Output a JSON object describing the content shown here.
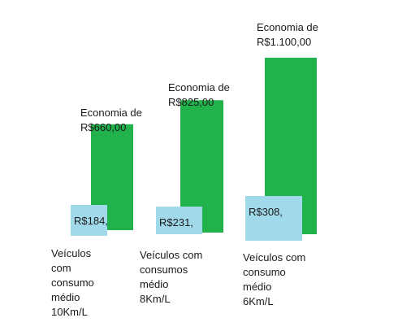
{
  "chart_data": {
    "type": "bar",
    "colors": {
      "savings": "#22b24c",
      "cost": "#9fd9ea"
    },
    "groups": [
      {
        "savings_value": 660,
        "savings_label": [
          "Economia de",
          "R$660,00"
        ],
        "cost_value": 184,
        "cost_label": "R$184,",
        "category_label": [
          "Veículos",
          "com",
          "consumo",
          "médio",
          "10Km/L"
        ]
      },
      {
        "savings_value": 825,
        "savings_label": [
          "Economia de",
          "R$825,00"
        ],
        "cost_value": 231,
        "cost_label": "R$231,",
        "category_label": [
          "Veículos com",
          "consumos",
          "médio",
          "8Km/L"
        ]
      },
      {
        "savings_value": 1100,
        "savings_label": [
          "Economia de",
          "R$1.100,00"
        ],
        "cost_value": 308,
        "cost_label": "R$308,",
        "category_label": [
          "Veículos com",
          "consumo",
          "médio",
          "6Km/L"
        ]
      }
    ]
  }
}
